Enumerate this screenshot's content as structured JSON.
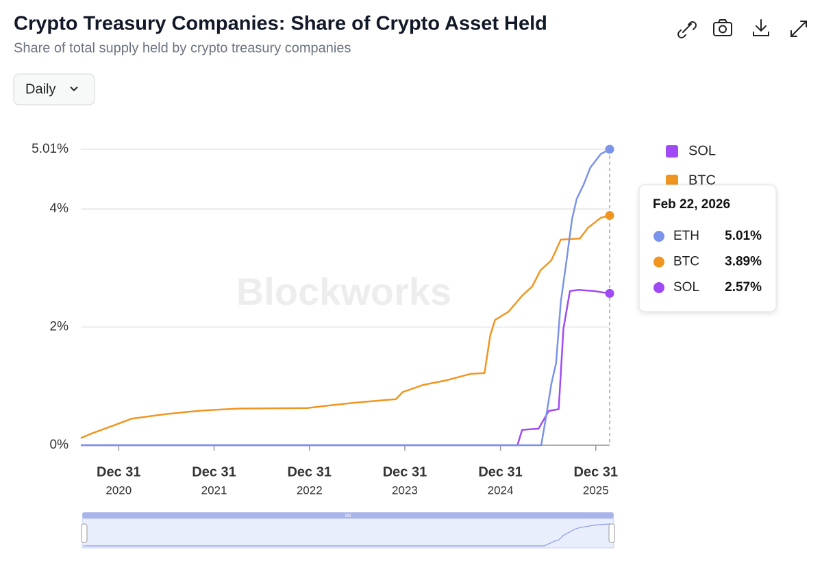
{
  "toolbar": {
    "interval": "Daily"
  },
  "chart_data": {
    "type": "line",
    "title": "Crypto Treasury Companies: Share of Crypto Asset Held",
    "subtitle": "Share of total supply held by crypto treasury companies",
    "watermark": "Blockworks",
    "xlim": [
      "2020-08-08",
      "2026-02-22"
    ],
    "xticks": [
      {
        "value": "2020-12-31",
        "label": "Dec 31",
        "year": "2020"
      },
      {
        "value": "2021-12-31",
        "label": "Dec 31",
        "year": "2021"
      },
      {
        "value": "2022-12-31",
        "label": "Dec 31",
        "year": "2022"
      },
      {
        "value": "2023-12-31",
        "label": "Dec 31",
        "year": "2023"
      },
      {
        "value": "2024-12-31",
        "label": "Dec 31",
        "year": "2024"
      },
      {
        "value": "2025-12-31",
        "label": "Dec 31",
        "year": "2025"
      }
    ],
    "ylim": [
      0,
      5.01
    ],
    "yticks": [
      {
        "value": 0,
        "label": "0%"
      },
      {
        "value": 2,
        "label": "2%"
      },
      {
        "value": 4,
        "label": "4%"
      },
      {
        "value": 5.01,
        "label": "5.01%"
      }
    ],
    "grid": true,
    "series": [
      {
        "name": "ETH",
        "color": "#7b93e8",
        "x": [
          "2020-08-08",
          "2025-06-05",
          "2025-06-23",
          "2025-07-14",
          "2025-08-01",
          "2025-08-19",
          "2025-09-10",
          "2025-10-01",
          "2025-10-19",
          "2025-11-14",
          "2025-12-10",
          "2026-01-19",
          "2026-02-22"
        ],
        "values": [
          0,
          0,
          0.46,
          1.04,
          1.39,
          2.43,
          3.13,
          3.83,
          4.17,
          4.41,
          4.7,
          4.93,
          5.01
        ]
      },
      {
        "name": "BTC",
        "color": "#f0951f",
        "x": [
          "2020-08-08",
          "2020-09-19",
          "2020-12-15",
          "2021-02-19",
          "2021-06-16",
          "2021-09-10",
          "2021-11-27",
          "2022-04-06",
          "2022-12-23",
          "2023-03-11",
          "2023-06-24",
          "2023-11-27",
          "2023-12-23",
          "2024-03-10",
          "2024-06-09",
          "2024-09-09",
          "2024-10-31",
          "2024-11-22",
          "2024-12-10",
          "2025-01-31",
          "2025-03-24",
          "2025-05-02",
          "2025-06-02",
          "2025-07-14",
          "2025-08-19",
          "2025-10-31",
          "2025-12-01",
          "2026-01-19",
          "2026-02-22"
        ],
        "values": [
          0.12,
          0.2,
          0.34,
          0.45,
          0.52,
          0.56,
          0.59,
          0.62,
          0.63,
          0.67,
          0.72,
          0.78,
          0.9,
          1.02,
          1.1,
          1.21,
          1.22,
          1.86,
          2.12,
          2.26,
          2.53,
          2.69,
          2.96,
          3.13,
          3.48,
          3.5,
          3.68,
          3.85,
          3.89
        ]
      },
      {
        "name": "SOL",
        "color": "#a04af5",
        "x": [
          "2020-08-08",
          "2025-03-06",
          "2025-03-24",
          "2025-05-26",
          "2025-07-04",
          "2025-08-11",
          "2025-08-29",
          "2025-09-23",
          "2025-10-26",
          "2025-12-23",
          "2026-02-22"
        ],
        "values": [
          0,
          0,
          0.26,
          0.28,
          0.58,
          0.61,
          1.97,
          2.61,
          2.63,
          2.61,
          2.57
        ]
      }
    ],
    "legend": "right",
    "tooltip": {
      "date": "Feb 22, 2026",
      "value_labels": [
        "5.01%",
        "3.89%",
        "2.57%"
      ]
    }
  }
}
